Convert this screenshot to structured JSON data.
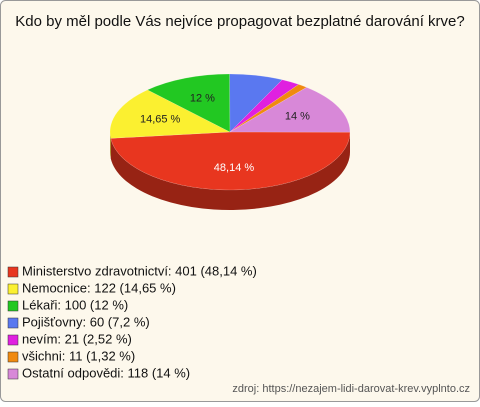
{
  "chart_data": {
    "type": "pie",
    "title": "Kdo by měl podle Vás nejvíce propagovat bezplatné darování krve?",
    "categories": [
      "Ministerstvo zdravotnictví: 401 (48,14 %)",
      "Nemocnice: 122 (14,65 %)",
      "Lékaři: 100 (12 %)",
      "Pojišťovny: 60 (7,2 %)",
      "nevím: 21 (2,52 %)",
      "všichni: 11 (1,32 %)",
      "Ostatní odpovědi: 118 (14 %)"
    ],
    "values": [
      48.14,
      14.65,
      12,
      7.2,
      2.52,
      1.32,
      14
    ],
    "value_labels": [
      "48,14 %",
      "14,65 %",
      "12 %",
      null,
      null,
      null,
      "14 %"
    ],
    "colors": [
      "#e8361f",
      "#fbf030",
      "#22c822",
      "#5a78f0",
      "#e020e0",
      "#f08a10",
      "#d888d8"
    ],
    "source": "zdroj: https://nezajem-lidi-darovat-krev.vyplnto.cz"
  }
}
